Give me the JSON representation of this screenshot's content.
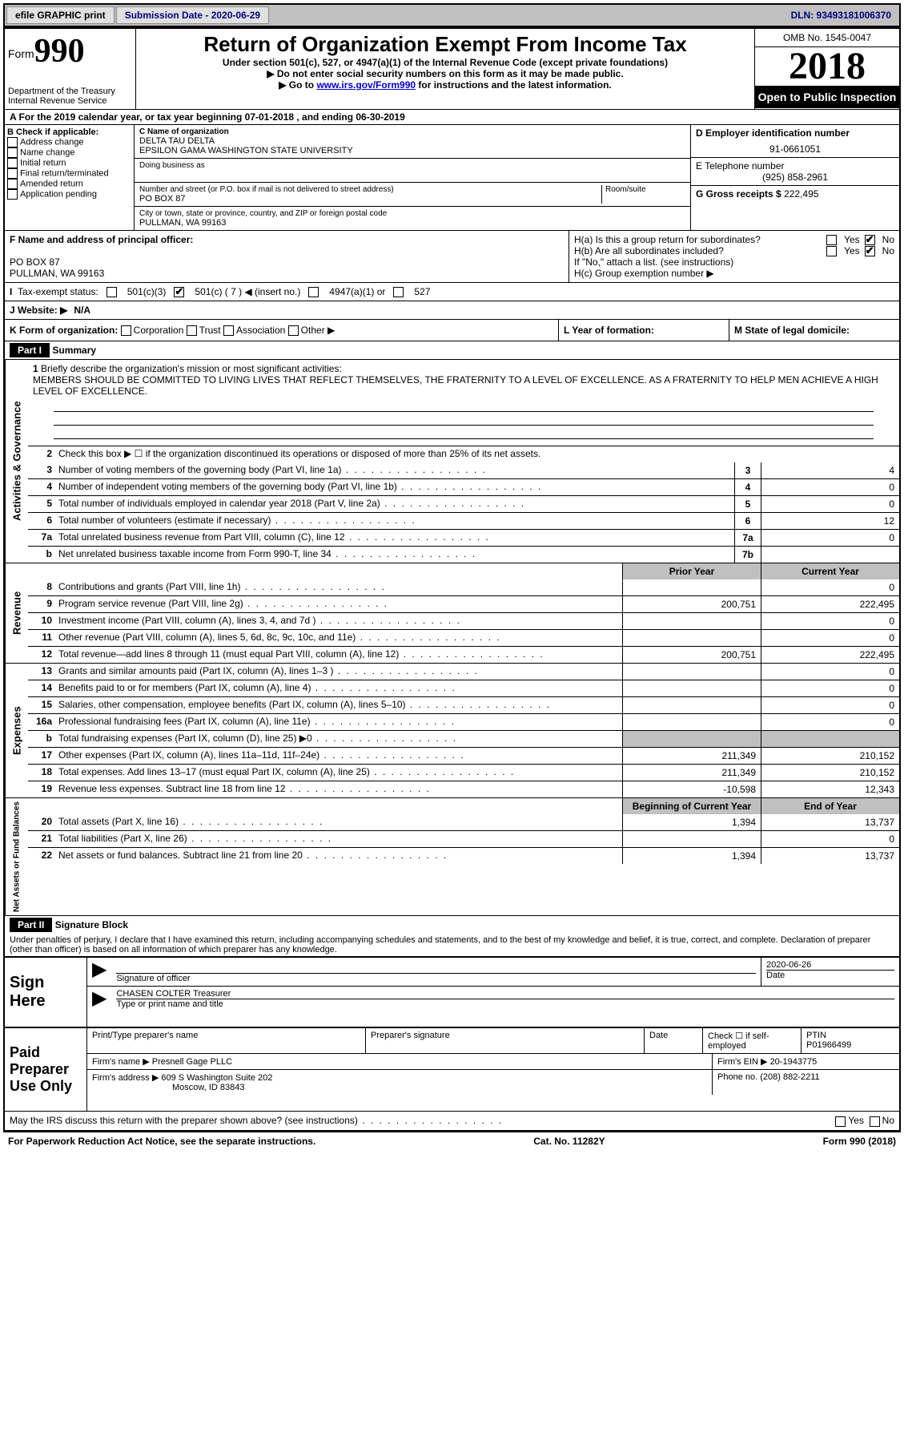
{
  "topbar": {
    "efile": "efile GRAPHIC print",
    "submission_label": "Submission Date",
    "submission_date": "2020-06-29",
    "dln": "DLN: 93493181006370"
  },
  "header": {
    "form_word": "Form",
    "form_num": "990",
    "dept": "Department of the Treasury\nInternal Revenue Service",
    "title": "Return of Organization Exempt From Income Tax",
    "subtitle1": "Under section 501(c), 527, or 4947(a)(1) of the Internal Revenue Code (except private foundations)",
    "subtitle2": "▶ Do not enter social security numbers on this form as it may be made public.",
    "subtitle3_pre": "▶ Go to ",
    "subtitle3_link": "www.irs.gov/Form990",
    "subtitle3_post": " for instructions and the latest information.",
    "omb": "OMB No. 1545-0047",
    "year": "2018",
    "open": "Open to Public Inspection"
  },
  "period": "A For the 2019 calendar year, or tax year beginning 07-01-2018   , and ending 06-30-2019",
  "box_b": {
    "label": "B Check if applicable:",
    "items": [
      "Address change",
      "Name change",
      "Initial return",
      "Final return/terminated",
      "Amended return",
      "Application pending"
    ]
  },
  "box_c": {
    "name_label": "C Name of organization",
    "name1": "DELTA TAU DELTA",
    "name2": "EPSILON GAMA WASHINGTON STATE UNIVERSITY",
    "dba": "Doing business as",
    "addr_label": "Number and street (or P.O. box if mail is not delivered to street address)",
    "room_label": "Room/suite",
    "addr": "PO BOX 87",
    "city_label": "City or town, state or province, country, and ZIP or foreign postal code",
    "city": "PULLMAN, WA  99163"
  },
  "box_d": {
    "ein_label": "D Employer identification number",
    "ein": "91-0661051",
    "phone_label": "E Telephone number",
    "phone": "(925) 858-2961",
    "gross_label": "G Gross receipts $",
    "gross": "222,495"
  },
  "box_f": {
    "label": "F  Name and address of principal officer:",
    "addr1": "PO BOX 87",
    "addr2": "PULLMAN, WA  99163"
  },
  "box_h": {
    "ha": "H(a)  Is this a group return for subordinates?",
    "hb": "H(b)  Are all subordinates included?",
    "hb_note": "If \"No,\" attach a list. (see instructions)",
    "hc": "H(c)  Group exemption number ▶"
  },
  "tax_status": {
    "label": "Tax-exempt status:",
    "c3": "501(c)(3)",
    "c": "501(c) ( 7 ) ◀ (insert no.)",
    "a1": "4947(a)(1) or",
    "s527": "527"
  },
  "line_j": {
    "label": "J   Website: ▶",
    "val": "N/A"
  },
  "line_k": "K Form of organization:",
  "k_opts": [
    "Corporation",
    "Trust",
    "Association",
    "Other ▶"
  ],
  "line_l": "L Year of formation:",
  "line_m": "M State of legal domicile:",
  "part1": {
    "header": "Part I",
    "title": "Summary",
    "q1": "Briefly describe the organization's mission or most significant activities:",
    "mission": "MEMBERS SHOULD BE COMMITTED TO LIVING LIVES THAT REFLECT THEMSELVES, THE FRATERNITY TO A LEVEL OF EXCELLENCE. AS A FRATERNITY TO HELP MEN ACHIEVE A HIGH LEVEL OF EXCELLENCE.",
    "q2": "Check this box ▶ ☐  if the organization discontinued its operations or disposed of more than 25% of its net assets.",
    "rows_gov": [
      {
        "n": "3",
        "d": "Number of voting members of the governing body (Part VI, line 1a)",
        "box": "3",
        "v": "4"
      },
      {
        "n": "4",
        "d": "Number of independent voting members of the governing body (Part VI, line 1b)",
        "box": "4",
        "v": "0"
      },
      {
        "n": "5",
        "d": "Total number of individuals employed in calendar year 2018 (Part V, line 2a)",
        "box": "5",
        "v": "0"
      },
      {
        "n": "6",
        "d": "Total number of volunteers (estimate if necessary)",
        "box": "6",
        "v": "12"
      },
      {
        "n": "7a",
        "d": "Total unrelated business revenue from Part VIII, column (C), line 12",
        "box": "7a",
        "v": "0"
      },
      {
        "n": "b",
        "d": "Net unrelated business taxable income from Form 990-T, line 34",
        "box": "7b",
        "v": ""
      }
    ],
    "prior_label": "Prior Year",
    "current_label": "Current Year",
    "rows_rev": [
      {
        "n": "8",
        "d": "Contributions and grants (Part VIII, line 1h)",
        "p": "",
        "c": "0"
      },
      {
        "n": "9",
        "d": "Program service revenue (Part VIII, line 2g)",
        "p": "200,751",
        "c": "222,495"
      },
      {
        "n": "10",
        "d": "Investment income (Part VIII, column (A), lines 3, 4, and 7d )",
        "p": "",
        "c": "0"
      },
      {
        "n": "11",
        "d": "Other revenue (Part VIII, column (A), lines 5, 6d, 8c, 9c, 10c, and 11e)",
        "p": "",
        "c": "0"
      },
      {
        "n": "12",
        "d": "Total revenue—add lines 8 through 11 (must equal Part VIII, column (A), line 12)",
        "p": "200,751",
        "c": "222,495"
      }
    ],
    "rows_exp": [
      {
        "n": "13",
        "d": "Grants and similar amounts paid (Part IX, column (A), lines 1–3 )",
        "p": "",
        "c": "0"
      },
      {
        "n": "14",
        "d": "Benefits paid to or for members (Part IX, column (A), line 4)",
        "p": "",
        "c": "0"
      },
      {
        "n": "15",
        "d": "Salaries, other compensation, employee benefits (Part IX, column (A), lines 5–10)",
        "p": "",
        "c": "0"
      },
      {
        "n": "16a",
        "d": "Professional fundraising fees (Part IX, column (A), line 11e)",
        "p": "",
        "c": "0"
      },
      {
        "n": "b",
        "d": "Total fundraising expenses (Part IX, column (D), line 25) ▶0",
        "p": "SHADE",
        "c": "SHADE"
      },
      {
        "n": "17",
        "d": "Other expenses (Part IX, column (A), lines 11a–11d, 11f–24e)",
        "p": "211,349",
        "c": "210,152"
      },
      {
        "n": "18",
        "d": "Total expenses. Add lines 13–17 (must equal Part IX, column (A), line 25)",
        "p": "211,349",
        "c": "210,152"
      },
      {
        "n": "19",
        "d": "Revenue less expenses. Subtract line 18 from line 12",
        "p": "-10,598",
        "c": "12,343"
      }
    ],
    "begin_label": "Beginning of Current Year",
    "end_label": "End of Year",
    "rows_net": [
      {
        "n": "20",
        "d": "Total assets (Part X, line 16)",
        "p": "1,394",
        "c": "13,737"
      },
      {
        "n": "21",
        "d": "Total liabilities (Part X, line 26)",
        "p": "",
        "c": "0"
      },
      {
        "n": "22",
        "d": "Net assets or fund balances. Subtract line 21 from line 20",
        "p": "1,394",
        "c": "13,737"
      }
    ]
  },
  "part2": {
    "header": "Part II",
    "title": "Signature Block",
    "perjury": "Under penalties of perjury, I declare that I have examined this return, including accompanying schedules and statements, and to the best of my knowledge and belief, it is true, correct, and complete. Declaration of preparer (other than officer) is based on all information of which preparer has any knowledge."
  },
  "sign": {
    "left": "Sign Here",
    "sig_officer": "Signature of officer",
    "date": "2020-06-26",
    "date_label": "Date",
    "name": "CHASEN COLTER  Treasurer",
    "name_label": "Type or print name and title"
  },
  "paid": {
    "left": "Paid Preparer Use Only",
    "print_label": "Print/Type preparer's name",
    "sig_label": "Preparer's signature",
    "date_label": "Date",
    "check_label": "Check ☐ if self-employed",
    "ptin_label": "PTIN",
    "ptin": "P01966499",
    "firm_name_label": "Firm's name    ▶",
    "firm_name": "Presnell Gage PLLC",
    "firm_ein_label": "Firm's EIN ▶",
    "firm_ein": "20-1943775",
    "firm_addr_label": "Firm's address ▶",
    "firm_addr1": "609 S Washington Suite 202",
    "firm_addr2": "Moscow, ID  83843",
    "phone_label": "Phone no.",
    "phone": "(208) 882-2211",
    "discuss": "May the IRS discuss this return with the preparer shown above? (see instructions)"
  },
  "footer": {
    "left": "For Paperwork Reduction Act Notice, see the separate instructions.",
    "mid": "Cat. No. 11282Y",
    "right": "Form 990 (2018)"
  },
  "yn": {
    "yes": "Yes",
    "no": "No"
  },
  "labels": {
    "gov": "Activities & Governance",
    "rev": "Revenue",
    "exp": "Expenses",
    "net": "Net Assets or Fund Balances"
  }
}
